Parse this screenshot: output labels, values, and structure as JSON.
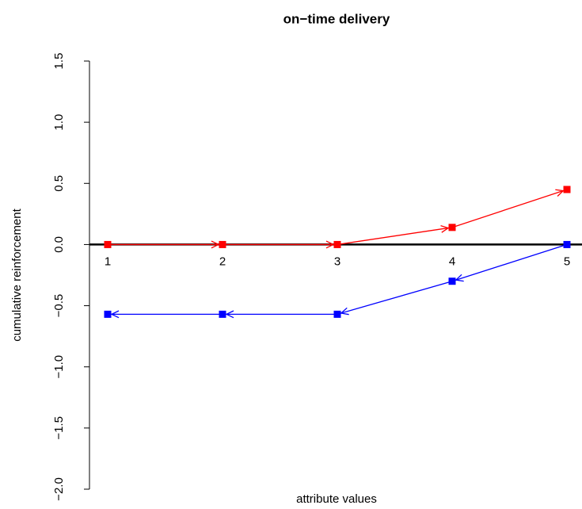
{
  "chart_data": {
    "type": "line",
    "title": "on−time delivery",
    "xlabel": "attribute values",
    "ylabel": "cumulative reinforcement",
    "x": [
      1,
      2,
      3,
      4,
      5
    ],
    "xlim": [
      1,
      5
    ],
    "xticks": [
      1,
      2,
      3,
      4,
      5
    ],
    "ylim": [
      -2.0,
      1.5
    ],
    "yticks": [
      {
        "value": -2.0,
        "label": "−2.0"
      },
      {
        "value": -1.5,
        "label": "−1.5"
      },
      {
        "value": -1.0,
        "label": "−1.0"
      },
      {
        "value": -0.5,
        "label": "−0.5"
      },
      {
        "value": 0,
        "label": "0.0"
      },
      {
        "value": 0.5,
        "label": "0.5"
      },
      {
        "value": 1.0,
        "label": "1.0"
      },
      {
        "value": 1.5,
        "label": "1.5"
      }
    ],
    "hline": 0,
    "series": [
      {
        "color": "#ff0000",
        "values": [
          0,
          0,
          0,
          0.14,
          0.45
        ]
      },
      {
        "color": "#0000ff",
        "values": [
          -0.57,
          -0.57,
          -0.57,
          -0.3,
          0
        ]
      }
    ]
  }
}
